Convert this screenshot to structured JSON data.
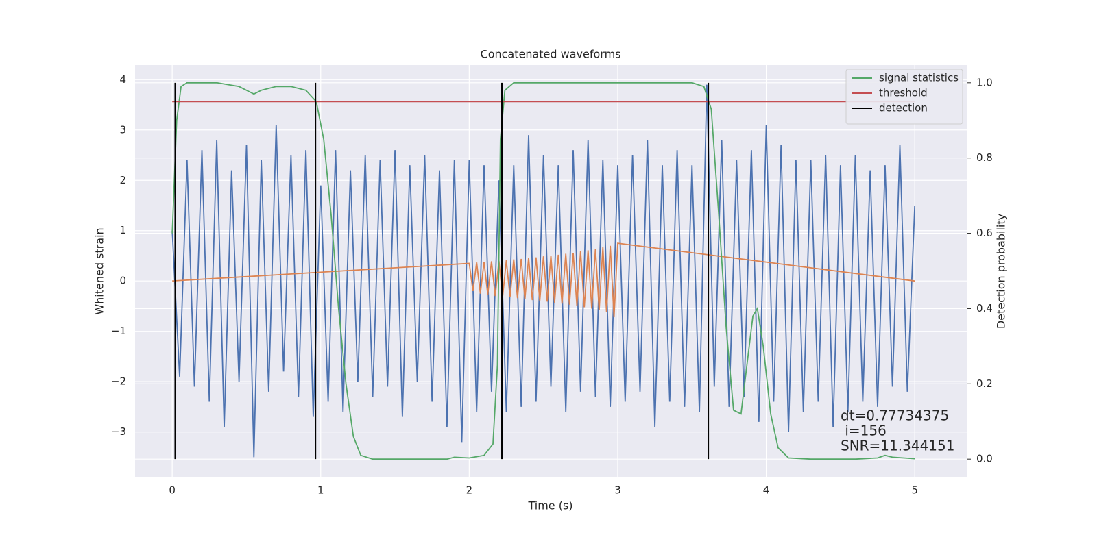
{
  "chart_data": {
    "type": "line",
    "title": "Concatenated waveforms",
    "xlabel": "Time (s)",
    "ylabel": "Whitened strain",
    "y2label": "Detection probability",
    "xlim": [
      -0.25,
      5.35
    ],
    "xticks": [
      0,
      1,
      2,
      3,
      4,
      5
    ],
    "ylim": [
      -3.89,
      4.29
    ],
    "yticks": [
      {
        "value": -3,
        "label": "−3"
      },
      {
        "value": -2,
        "label": "−2"
      },
      {
        "value": -1,
        "label": "−1"
      },
      0,
      1,
      2,
      3,
      4
    ],
    "y2lim": [
      -0.047,
      1.047
    ],
    "y2ticks": [
      {
        "value": 0,
        "label": "0.0"
      },
      0.2,
      0.4,
      0.6,
      0.8,
      {
        "value": 1,
        "label": "1.0"
      }
    ],
    "grid": true,
    "legend": "upper right",
    "series": [
      {
        "color": "#4c72b0",
        "x": [
          0,
          0.05,
          0.1,
          0.15,
          0.2,
          0.25,
          0.3,
          0.35,
          0.4,
          0.45,
          0.5,
          0.55,
          0.6,
          0.65,
          0.7,
          0.75,
          0.8,
          0.85,
          0.9,
          0.95,
          1,
          1.05,
          1.1,
          1.15,
          1.2,
          1.25,
          1.3,
          1.35,
          1.4,
          1.45,
          1.5,
          1.55,
          1.6,
          1.65,
          1.7,
          1.75,
          1.8,
          1.85,
          1.9,
          1.95,
          2,
          2.05,
          2.1,
          2.15,
          2.2,
          2.25,
          2.3,
          2.35,
          2.4,
          2.45,
          2.5,
          2.55,
          2.6,
          2.65,
          2.7,
          2.75,
          2.8,
          2.85,
          2.9,
          2.95,
          3,
          3.05,
          3.1,
          3.15,
          3.2,
          3.25,
          3.3,
          3.35,
          3.4,
          3.45,
          3.5,
          3.55,
          3.6,
          3.65,
          3.7,
          3.75,
          3.8,
          3.85,
          3.9,
          3.95,
          4,
          4.05,
          4.1,
          4.15,
          4.2,
          4.25,
          4.3,
          4.35,
          4.4,
          4.45,
          4.5,
          4.55,
          4.6,
          4.65,
          4.7,
          4.75,
          4.8,
          4.85,
          4.9,
          4.95,
          5
        ],
        "values": [
          1.0,
          -1.9,
          2.4,
          -2.1,
          2.6,
          -2.4,
          2.8,
          -2.9,
          2.2,
          -2.0,
          2.7,
          -3.5,
          2.4,
          -2.2,
          3.1,
          -1.8,
          2.5,
          -2.3,
          2.6,
          -2.7,
          1.9,
          -2.4,
          2.6,
          -2.6,
          2.2,
          -2.0,
          2.5,
          -2.3,
          2.4,
          -2.1,
          2.6,
          -2.7,
          2.3,
          -2.0,
          2.5,
          -2.4,
          2.2,
          -2.9,
          2.4,
          -3.2,
          2.4,
          -2.6,
          2.3,
          -2.2,
          2.0,
          -2.6,
          2.3,
          -2.5,
          2.9,
          -2.4,
          2.5,
          -2.1,
          2.3,
          -2.6,
          2.6,
          -2.2,
          2.8,
          -2.3,
          2.4,
          -2.5,
          2.3,
          -2.4,
          2.5,
          -2.2,
          2.8,
          -2.9,
          2.3,
          -2.4,
          2.6,
          -2.5,
          2.3,
          -2.6,
          3.9,
          -2.1,
          2.8,
          -2.5,
          2.4,
          -2.3,
          2.6,
          -2.8,
          3.1,
          -2.4,
          2.7,
          -3.0,
          2.4,
          -2.6,
          2.4,
          -2.4,
          2.5,
          -2.9,
          2.3,
          -2.6,
          2.5,
          -2.4,
          2.2,
          -2.5,
          2.3,
          -2.1,
          2.7,
          -2.2,
          1.5
        ]
      },
      {
        "color": "#dd8452",
        "x": [
          0,
          2,
          2.025,
          2.05,
          2.075,
          2.1,
          2.125,
          2.15,
          2.175,
          2.2,
          2.225,
          2.25,
          2.275,
          2.3,
          2.325,
          2.35,
          2.375,
          2.4,
          2.425,
          2.45,
          2.475,
          2.5,
          2.525,
          2.55,
          2.575,
          2.6,
          2.625,
          2.65,
          2.675,
          2.7,
          2.725,
          2.75,
          2.775,
          2.8,
          2.825,
          2.85,
          2.875,
          2.9,
          2.925,
          2.95,
          2.975,
          3,
          5
        ],
        "values": [
          0,
          0.35,
          -0.2,
          0.37,
          -0.25,
          0.38,
          -0.27,
          0.39,
          -0.3,
          0.4,
          -0.31,
          0.41,
          -0.32,
          0.43,
          -0.34,
          0.44,
          -0.36,
          0.46,
          -0.38,
          0.47,
          -0.39,
          0.49,
          -0.41,
          0.5,
          -0.43,
          0.52,
          -0.45,
          0.54,
          -0.47,
          0.56,
          -0.49,
          0.59,
          -0.52,
          0.61,
          -0.55,
          0.64,
          -0.58,
          0.67,
          -0.62,
          0.7,
          -0.72,
          0.75,
          0
        ]
      },
      {
        "name": "signal statistics",
        "color": "#55a868",
        "axis": "y2",
        "x": [
          0,
          0.03,
          0.06,
          0.1,
          0.3,
          0.45,
          0.5,
          0.55,
          0.6,
          0.7,
          0.8,
          0.9,
          0.97,
          1.02,
          1.07,
          1.12,
          1.17,
          1.22,
          1.27,
          1.35,
          1.6,
          1.85,
          1.9,
          2.0,
          2.1,
          2.16,
          2.19,
          2.21,
          2.24,
          2.3,
          2.6,
          3.0,
          3.5,
          3.58,
          3.63,
          3.68,
          3.73,
          3.78,
          3.83,
          3.87,
          3.91,
          3.94,
          3.98,
          4.03,
          4.08,
          4.15,
          4.3,
          4.6,
          4.75,
          4.8,
          4.85,
          5
        ],
        "values": [
          0.6,
          0.9,
          0.99,
          1.0,
          1.0,
          0.99,
          0.98,
          0.97,
          0.98,
          0.99,
          0.99,
          0.98,
          0.95,
          0.85,
          0.65,
          0.4,
          0.2,
          0.06,
          0.01,
          0.0,
          0.0,
          0.0,
          0.005,
          0.003,
          0.01,
          0.04,
          0.25,
          0.85,
          0.98,
          1.0,
          1.0,
          1.0,
          1.0,
          0.99,
          0.93,
          0.65,
          0.35,
          0.13,
          0.12,
          0.25,
          0.38,
          0.4,
          0.3,
          0.12,
          0.03,
          0.003,
          0.0,
          0.0,
          0.003,
          0.01,
          0.005,
          0.001
        ]
      },
      {
        "name": "threshold",
        "color": "#c44e52",
        "axis": "y2",
        "x": [
          0,
          5
        ],
        "values": [
          0.95,
          0.95
        ]
      },
      {
        "name": "detection",
        "color": "#000000",
        "axis": "y2",
        "kind": "vlines",
        "x": [
          0.02,
          0.965,
          2.22,
          3.61
        ],
        "span": [
          0,
          1
        ]
      }
    ],
    "annotation": [
      "dt=0.77734375",
      " i=156",
      "SNR=11.344151"
    ]
  }
}
